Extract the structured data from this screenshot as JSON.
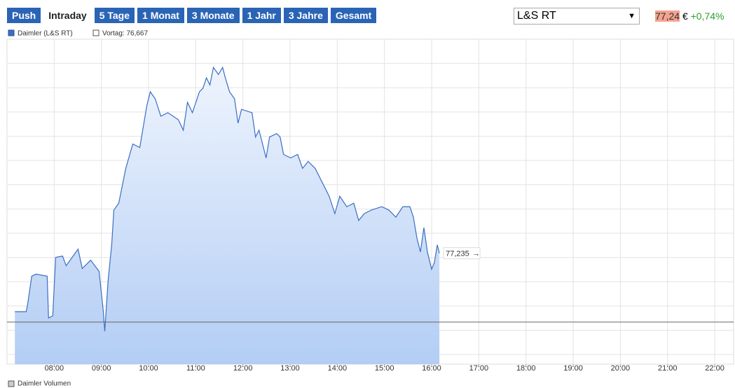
{
  "buttons": [
    {
      "label": "Push",
      "active": false
    },
    {
      "label": "Intraday",
      "active": true
    },
    {
      "label": "5 Tage",
      "active": false
    },
    {
      "label": "1 Monat",
      "active": false
    },
    {
      "label": "3 Monate",
      "active": false
    },
    {
      "label": "1 Jahr",
      "active": false
    },
    {
      "label": "3 Jahre",
      "active": false
    },
    {
      "label": "Gesamt",
      "active": false
    }
  ],
  "exchange": "L&S RT",
  "price": "77,24",
  "currency": "€",
  "change": "+0,74%",
  "volume_legend": "Daimler Volumen",
  "chart_data": {
    "type": "area",
    "x": [
      7.167,
      7.405,
      7.435,
      7.524,
      7.613,
      7.851,
      7.881,
      7.97,
      8.03,
      8.178,
      8.253,
      8.506,
      8.595,
      8.773,
      8.952,
      9.041,
      9.071,
      9.145,
      9.219,
      9.264,
      9.368,
      9.517,
      9.665,
      9.814,
      9.963,
      10.037,
      10.141,
      10.26,
      10.409,
      10.632,
      10.736,
      10.825,
      10.929,
      11.078,
      11.152,
      11.227,
      11.301,
      11.375,
      11.48,
      11.569,
      11.628,
      11.717,
      11.822,
      11.896,
      11.97,
      12.193,
      12.268,
      12.342,
      12.491,
      12.565,
      12.714,
      12.788,
      12.862,
      13.011,
      13.16,
      13.264,
      13.383,
      13.532,
      13.68,
      13.829,
      13.948,
      14.052,
      14.201,
      14.349,
      14.454,
      14.572,
      14.721,
      14.944,
      15.093,
      15.242,
      15.39,
      15.539,
      15.613,
      15.688,
      15.762,
      15.836,
      15.911,
      16.0,
      16.059,
      16.119,
      16.164
    ],
    "series": [
      {
        "name": "Daimler (L&S RT)",
        "color": "#3a6fc4",
        "values": [
          76.753,
          76.753,
          76.81,
          77.046,
          77.063,
          77.046,
          76.701,
          76.719,
          77.201,
          77.212,
          77.132,
          77.269,
          77.109,
          77.178,
          77.086,
          76.759,
          76.592,
          77.017,
          77.304,
          77.591,
          77.648,
          77.935,
          78.136,
          78.107,
          78.451,
          78.566,
          78.509,
          78.365,
          78.394,
          78.336,
          78.25,
          78.48,
          78.394,
          78.566,
          78.595,
          78.681,
          78.623,
          78.767,
          78.709,
          78.767,
          78.681,
          78.566,
          78.509,
          78.308,
          78.422,
          78.394,
          78.193,
          78.25,
          78.021,
          78.193,
          78.222,
          78.193,
          78.05,
          78.021,
          78.05,
          77.935,
          77.992,
          77.935,
          77.82,
          77.705,
          77.562,
          77.705,
          77.619,
          77.648,
          77.505,
          77.562,
          77.591,
          77.619,
          77.591,
          77.533,
          77.619,
          77.619,
          77.533,
          77.361,
          77.246,
          77.447,
          77.246,
          77.103,
          77.16,
          77.304,
          77.235
        ]
      }
    ],
    "reference": {
      "name": "Vortag: 76,667",
      "value": 76.667,
      "color": "#666666"
    },
    "annotations": [
      {
        "x": 16.164,
        "value": 77.235,
        "label": "77,235"
      }
    ],
    "xlim": [
      7.0,
      22.4
    ],
    "xticks": [
      {
        "value": 8,
        "label": "08:00"
      },
      {
        "value": 9,
        "label": "09:00"
      },
      {
        "value": 10,
        "label": "10:00"
      },
      {
        "value": 11,
        "label": "11:00"
      },
      {
        "value": 12,
        "label": "12:00"
      },
      {
        "value": 13,
        "label": "13:00"
      },
      {
        "value": 14,
        "label": "14:00"
      },
      {
        "value": 15,
        "label": "15:00"
      },
      {
        "value": 16,
        "label": "16:00"
      },
      {
        "value": 17,
        "label": "17:00"
      },
      {
        "value": 18,
        "label": "18:00"
      },
      {
        "value": 19,
        "label": "19:00"
      },
      {
        "value": 20,
        "label": "20:00"
      },
      {
        "value": 21,
        "label": "21:00"
      },
      {
        "value": 22,
        "label": "22:00"
      }
    ],
    "ylim": [
      76.32,
      79.0
    ],
    "yticks": [
      76.4,
      76.6,
      76.8,
      77.0,
      77.2,
      77.4,
      77.6,
      77.8,
      78.0,
      78.2,
      78.4,
      78.6,
      78.8
    ],
    "ytick_labels": false,
    "grid": true
  }
}
